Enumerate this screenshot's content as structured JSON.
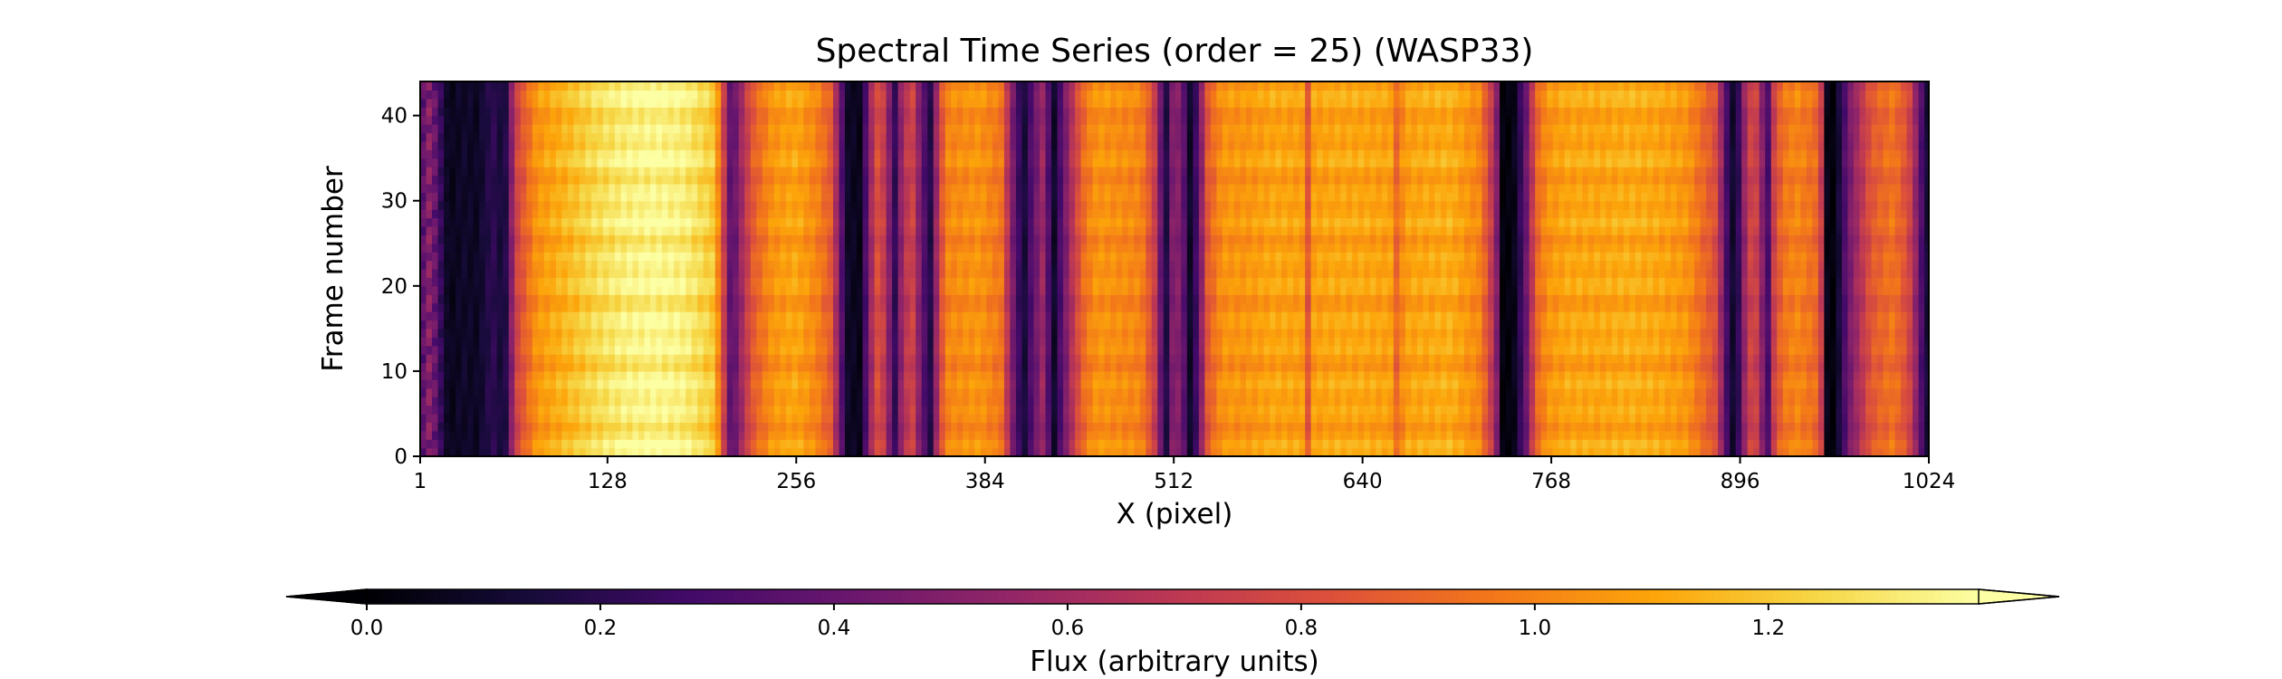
{
  "chart_data": {
    "type": "heatmap",
    "title": "Spectral Time Series (order = 25) (WASP33)",
    "xlabel": "X (pixel)",
    "ylabel": "Frame number",
    "xlim": [
      1,
      1024
    ],
    "ylim": [
      0,
      44
    ],
    "xticks": [
      1,
      128,
      256,
      384,
      512,
      640,
      768,
      896,
      1024
    ],
    "yticks": [
      0,
      10,
      20,
      30,
      40
    ],
    "colormap": "inferno",
    "colorbar": {
      "label": "Flux (arbitrary units)",
      "vmin": 0.0,
      "vmax": 1.38,
      "ticks": [
        "0.0",
        "0.2",
        "0.4",
        "0.6",
        "0.8",
        "1.0",
        "1.2"
      ],
      "extend": "both",
      "orientation": "horizontal",
      "placement": "bottom"
    },
    "flux_profile": {
      "description": "approximate median flux per pixel column (frames show near-identical vertical bands)",
      "x": [
        1,
        8,
        14,
        20,
        30,
        40,
        50,
        58,
        66,
        80,
        100,
        120,
        140,
        160,
        180,
        200,
        205,
        212,
        218,
        226,
        240,
        256,
        270,
        280,
        290,
        300,
        306,
        312,
        318,
        322,
        328,
        334,
        342,
        348,
        352,
        358,
        380,
        395,
        402,
        410,
        416,
        424,
        430,
        436,
        444,
        452,
        460,
        490,
        500,
        506,
        512,
        518,
        522,
        528,
        535,
        545,
        560,
        580,
        600,
        603,
        606,
        620,
        640,
        660,
        664,
        668,
        680,
        700,
        720,
        730,
        735,
        742,
        750,
        758,
        766,
        780,
        800,
        820,
        840,
        860,
        880,
        888,
        893,
        898,
        905,
        912,
        915,
        918,
        925,
        935,
        950,
        955,
        960,
        970,
        985,
        1000,
        1010,
        1015,
        1020,
        1024
      ],
      "values": [
        0.3,
        0.5,
        0.25,
        0.05,
        0.1,
        0.08,
        0.22,
        0.1,
        0.75,
        1.05,
        1.15,
        1.25,
        1.32,
        1.35,
        1.32,
        1.2,
        0.9,
        0.3,
        0.55,
        0.85,
        1.05,
        1.1,
        1.0,
        0.85,
        0.1,
        0.05,
        0.55,
        0.85,
        0.6,
        0.15,
        0.6,
        0.8,
        0.35,
        0.15,
        0.7,
        1.0,
        1.05,
        0.95,
        0.5,
        0.1,
        0.35,
        0.6,
        0.05,
        0.35,
        0.7,
        0.95,
        1.05,
        1.0,
        0.7,
        0.1,
        0.55,
        0.45,
        0.05,
        0.3,
        0.85,
        1.05,
        1.05,
        1.1,
        1.08,
        0.85,
        1.08,
        1.1,
        1.1,
        1.08,
        0.85,
        1.08,
        1.1,
        1.12,
        1.0,
        0.6,
        0.02,
        0.02,
        0.35,
        0.9,
        1.05,
        1.1,
        1.1,
        1.12,
        1.1,
        1.05,
        0.8,
        0.2,
        0.05,
        0.5,
        0.85,
        0.45,
        0.3,
        0.7,
        0.95,
        1.0,
        0.9,
        0.05,
        0.0,
        0.45,
        0.85,
        0.95,
        0.8,
        0.55,
        0.25,
        0.1
      ]
    },
    "n_frames": 44
  }
}
